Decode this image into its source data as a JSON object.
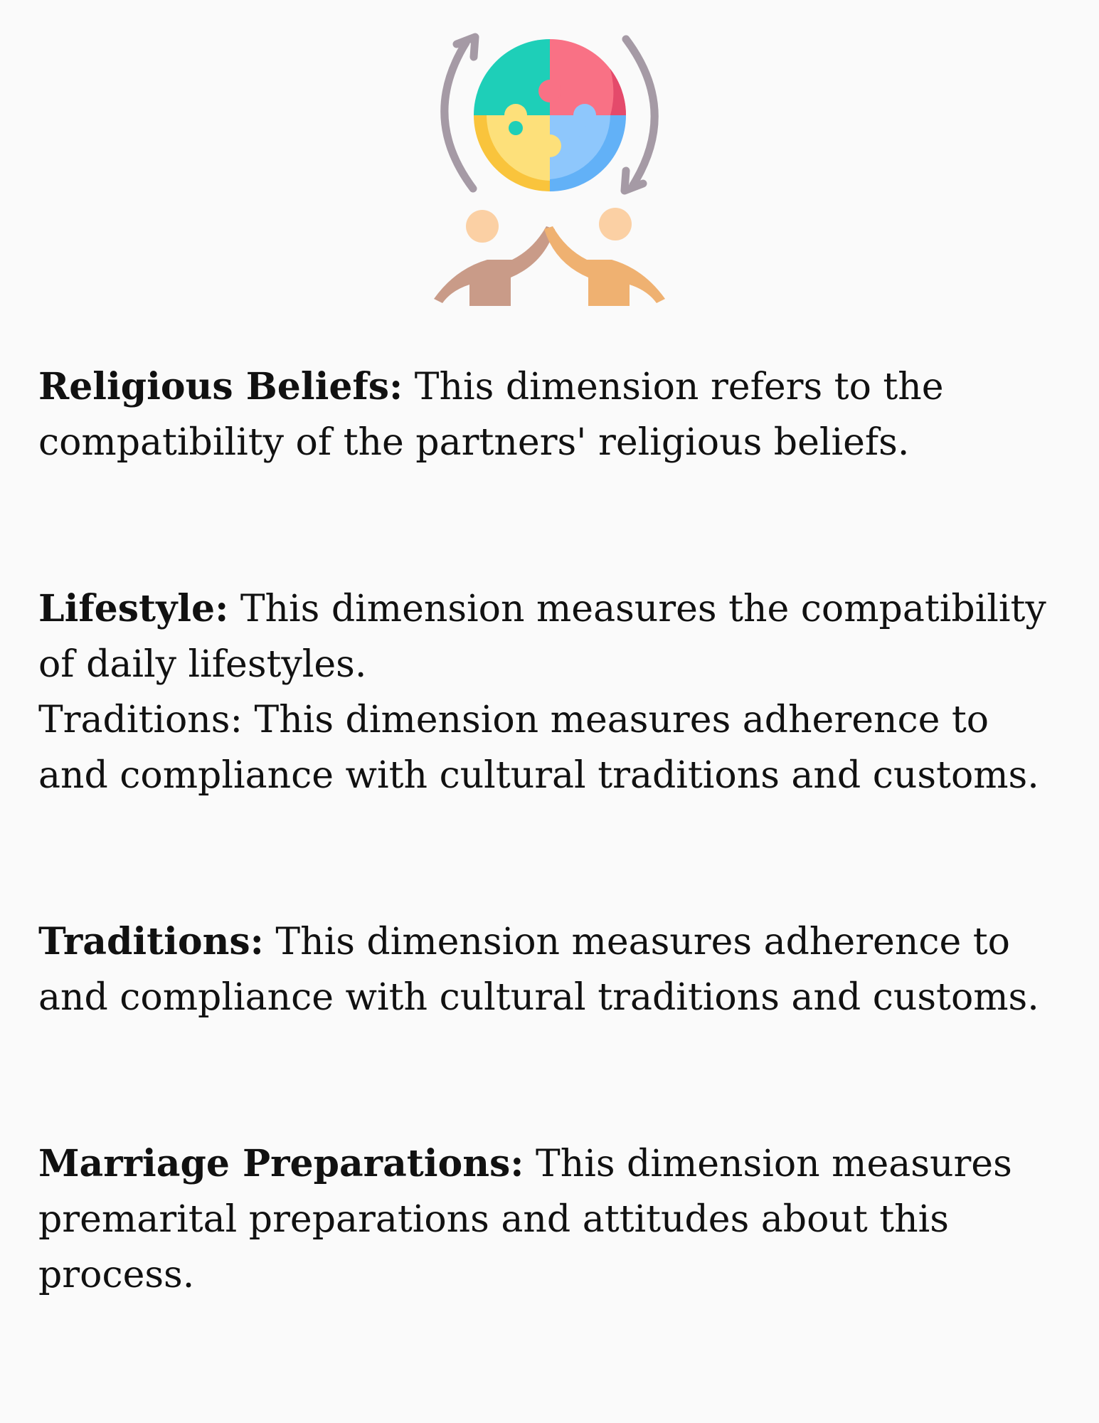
{
  "hero": {
    "icon": "puzzle-globe-teamwork-icon"
  },
  "paragraphs": [
    {
      "term": "Religious Beliefs:",
      "text": " This dimension refers to the compatibility of the partners' religious beliefs."
    },
    {
      "term": "Lifestyle:",
      "text": " This dimension measures the compatibility of daily lifestyles."
    },
    {
      "term": "",
      "text": "Traditions: This dimension measures adherence to and compliance with cultural traditions and customs."
    },
    {
      "term": "Traditions:",
      "text": " This dimension measures adherence to and compliance with cultural traditions and customs."
    },
    {
      "term": "Marriage Preparations:",
      "text": " This dimension measures premarital preparations and attitudes about this process."
    }
  ]
}
